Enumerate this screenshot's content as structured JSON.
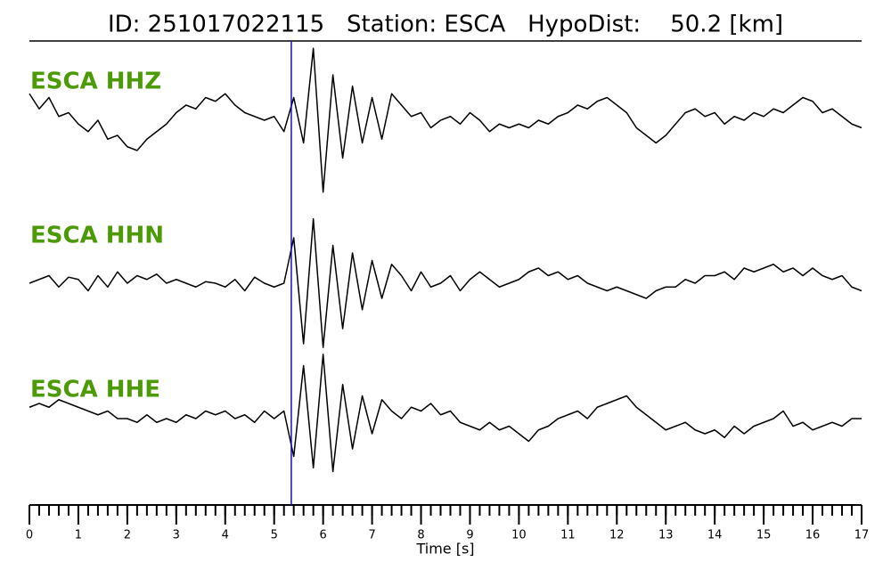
{
  "chart_data": {
    "type": "line",
    "title": "ID: 251017022115   Station: ESCA   HypoDist:    50.2 [km]",
    "xlabel": "Time [s]",
    "xlim": [
      0,
      17
    ],
    "xticks": [
      0,
      1,
      2,
      3,
      4,
      5,
      6,
      7,
      8,
      9,
      10,
      11,
      12,
      13,
      14,
      15,
      16,
      17
    ],
    "xminor_step": 0.2,
    "ylim": [
      -1,
      1
    ],
    "label_color": "#4c9a06",
    "pick": {
      "x": 5.35,
      "color": "#1010c8"
    },
    "x": [
      0,
      0.2,
      0.4,
      0.6,
      0.8,
      1,
      1.2,
      1.4,
      1.6,
      1.8,
      2,
      2.2,
      2.4,
      2.6,
      2.8,
      3,
      3.2,
      3.4,
      3.6,
      3.8,
      4,
      4.2,
      4.4,
      4.6,
      4.8,
      5,
      5.2,
      5.4,
      5.6,
      5.8,
      6,
      6.2,
      6.4,
      6.6,
      6.8,
      7,
      7.2,
      7.4,
      7.6,
      7.8,
      8,
      8.2,
      8.4,
      8.6,
      8.8,
      9,
      9.2,
      9.4,
      9.6,
      9.8,
      10,
      10.2,
      10.4,
      10.6,
      10.8,
      11,
      11.2,
      11.4,
      11.6,
      11.8,
      12,
      12.2,
      12.4,
      12.6,
      12.8,
      13,
      13.2,
      13.4,
      13.6,
      13.8,
      14,
      14.2,
      14.4,
      14.6,
      14.8,
      15,
      15.2,
      15.4,
      15.6,
      15.8,
      16,
      16.2,
      16.4,
      16.6,
      16.8,
      17
    ],
    "series": [
      {
        "name": "ESCA HHZ",
        "color": "#000000",
        "values": [
          0.35,
          0.15,
          0.3,
          0.05,
          0.1,
          -0.05,
          -0.15,
          0.0,
          -0.25,
          -0.2,
          -0.35,
          -0.4,
          -0.25,
          -0.15,
          -0.05,
          0.1,
          0.2,
          0.15,
          0.3,
          0.25,
          0.35,
          0.2,
          0.1,
          0.05,
          0.0,
          0.05,
          -0.15,
          0.3,
          -0.3,
          0.95,
          -0.95,
          0.6,
          -0.5,
          0.45,
          -0.3,
          0.3,
          -0.25,
          0.35,
          0.2,
          0.05,
          0.1,
          -0.1,
          0.0,
          0.05,
          -0.05,
          0.1,
          0.0,
          -0.15,
          -0.05,
          -0.1,
          -0.05,
          -0.1,
          0.0,
          -0.05,
          0.05,
          0.1,
          0.2,
          0.15,
          0.25,
          0.3,
          0.2,
          0.1,
          -0.1,
          -0.2,
          -0.3,
          -0.2,
          -0.05,
          0.1,
          0.15,
          0.05,
          0.1,
          -0.05,
          0.05,
          0.0,
          0.1,
          0.05,
          0.15,
          0.1,
          0.2,
          0.3,
          0.25,
          0.1,
          0.15,
          0.05,
          -0.05,
          -0.1
        ]
      },
      {
        "name": "ESCA HHN",
        "color": "#000000",
        "values": [
          0.0,
          0.05,
          0.1,
          -0.05,
          0.08,
          0.05,
          -0.1,
          0.1,
          -0.05,
          0.15,
          0.0,
          0.1,
          0.05,
          0.12,
          0.0,
          0.05,
          0.0,
          -0.05,
          0.02,
          0.0,
          -0.05,
          0.05,
          -0.1,
          0.08,
          0.0,
          -0.05,
          0.0,
          0.6,
          -0.8,
          0.85,
          -0.85,
          0.5,
          -0.6,
          0.4,
          -0.35,
          0.3,
          -0.2,
          0.25,
          0.1,
          -0.1,
          0.15,
          -0.05,
          0.0,
          0.1,
          -0.1,
          0.05,
          0.15,
          0.05,
          -0.05,
          0.0,
          0.05,
          0.15,
          0.2,
          0.1,
          0.15,
          0.05,
          0.1,
          0.0,
          -0.05,
          -0.1,
          -0.05,
          -0.1,
          -0.15,
          -0.2,
          -0.1,
          -0.05,
          -0.05,
          0.05,
          0.0,
          0.1,
          0.1,
          0.15,
          0.05,
          0.2,
          0.15,
          0.2,
          0.25,
          0.15,
          0.2,
          0.1,
          0.2,
          0.1,
          0.05,
          0.1,
          -0.05,
          -0.1
        ]
      },
      {
        "name": "ESCA HHE",
        "color": "#000000",
        "values": [
          0.15,
          0.2,
          0.15,
          0.25,
          0.2,
          0.15,
          0.1,
          0.05,
          0.1,
          0.0,
          0.0,
          -0.05,
          0.05,
          -0.05,
          0.0,
          -0.05,
          0.05,
          0.0,
          0.1,
          0.05,
          0.1,
          0.0,
          0.05,
          -0.05,
          0.1,
          0.0,
          0.1,
          -0.5,
          0.7,
          -0.65,
          0.85,
          -0.7,
          0.45,
          -0.4,
          0.3,
          -0.2,
          0.25,
          0.1,
          0.0,
          0.15,
          0.1,
          0.2,
          0.05,
          0.1,
          -0.05,
          -0.1,
          -0.15,
          -0.05,
          -0.15,
          -0.1,
          -0.2,
          -0.3,
          -0.15,
          -0.1,
          0.0,
          0.05,
          0.1,
          0.0,
          0.15,
          0.2,
          0.25,
          0.3,
          0.15,
          0.05,
          -0.05,
          -0.15,
          -0.1,
          -0.05,
          -0.15,
          -0.2,
          -0.15,
          -0.25,
          -0.1,
          -0.2,
          -0.1,
          -0.05,
          0.0,
          0.1,
          -0.1,
          -0.05,
          -0.15,
          -0.1,
          -0.05,
          -0.1,
          0.0,
          0.0
        ]
      }
    ]
  }
}
